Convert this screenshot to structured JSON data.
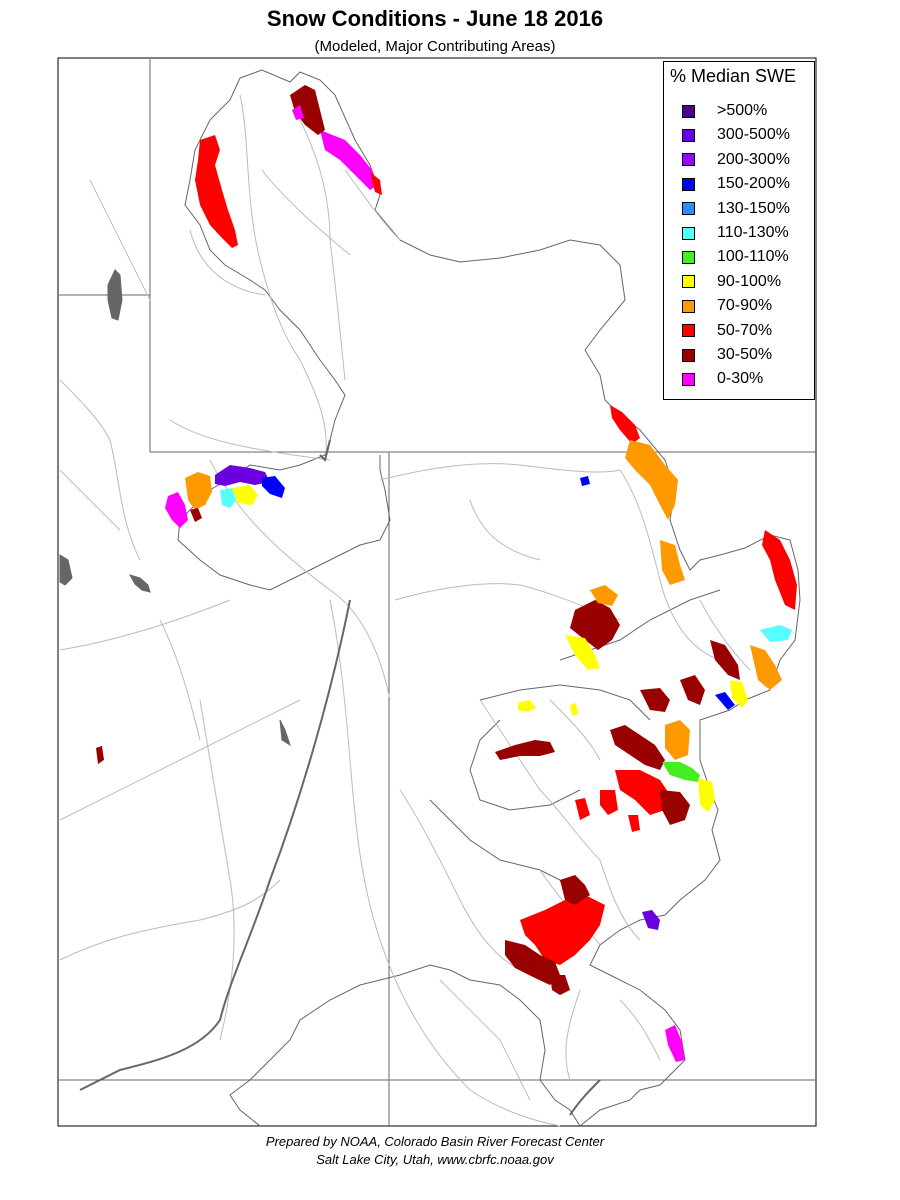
{
  "title": "Snow Conditions - June 18 2016",
  "subtitle": "(Modeled, Major Contributing Areas)",
  "legend": {
    "title": "% Median SWE",
    "items": [
      {
        "label": ">500%",
        "color": "#4b0090"
      },
      {
        "label": "300-500%",
        "color": "#6a00e0"
      },
      {
        "label": "200-300%",
        "color": "#9b00ff"
      },
      {
        "label": "150-200%",
        "color": "#0000ff"
      },
      {
        "label": "130-150%",
        "color": "#2d8cff"
      },
      {
        "label": "110-130%",
        "color": "#55ffff"
      },
      {
        "label": "100-110%",
        "color": "#44ee22"
      },
      {
        "label": "90-100%",
        "color": "#ffff00"
      },
      {
        "label": "70-90%",
        "color": "#ff9900"
      },
      {
        "label": "50-70%",
        "color": "#ff0000"
      },
      {
        "label": "30-50%",
        "color": "#990000"
      },
      {
        "label": "0-30%",
        "color": "#ff00ff"
      }
    ]
  },
  "footer": {
    "line1": "Prepared by NOAA, Colorado Basin River Forecast Center",
    "line2": "Salt Lake City, Utah, www.cbrfc.noaa.gov"
  },
  "colors": {
    "border": "#666666",
    "river": "#bbbbbb",
    "lake": "#666666"
  }
}
